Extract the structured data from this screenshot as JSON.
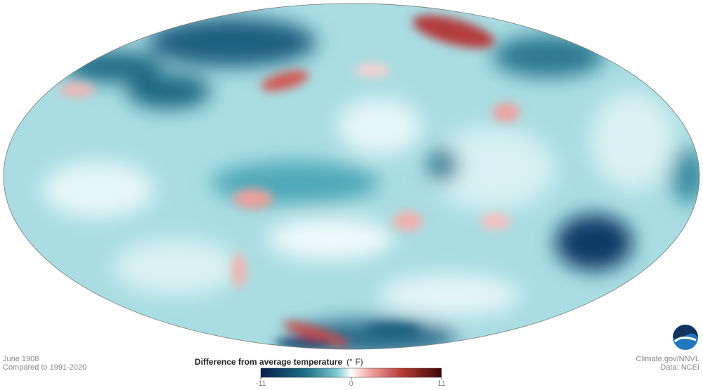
{
  "footer": {
    "date": "June 1908",
    "baseline": "Compared to 1991-2020",
    "source": "Climate.gov/NNVL",
    "data_source": "Data: NCEI"
  },
  "legend": {
    "title": "Difference from average temperature",
    "unit": "(° F)",
    "ticks": [
      -11,
      0,
      11
    ]
  }
}
